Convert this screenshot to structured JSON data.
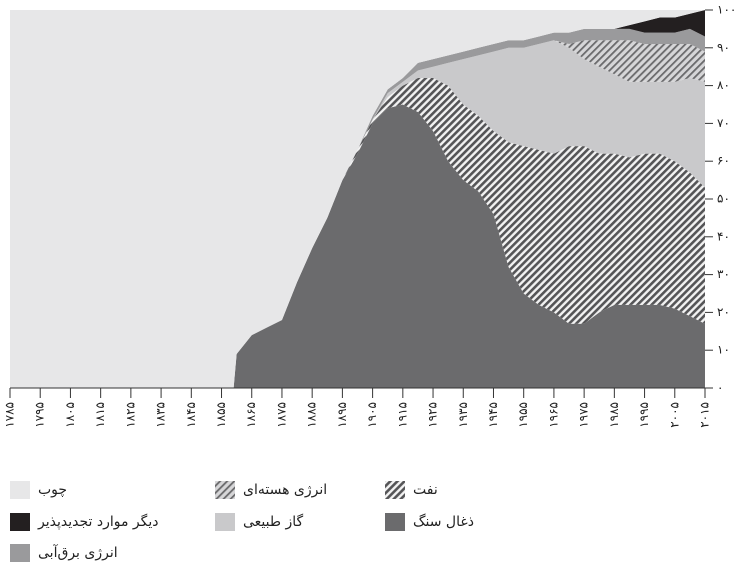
{
  "chart_data": {
    "type": "stacked_area",
    "x": [
      1785,
      1859,
      1860,
      1865,
      1870,
      1875,
      1880,
      1885,
      1890,
      1895,
      1900,
      1905,
      1910,
      1915,
      1920,
      1925,
      1930,
      1935,
      1940,
      1945,
      1950,
      1955,
      1960,
      1965,
      1970,
      1975,
      1980,
      1985,
      1990,
      1995,
      2000,
      2005,
      2010,
      2015
    ],
    "series": [
      {
        "name": "ذغال سنگ",
        "color": "#6b6b6d",
        "values": [
          0,
          0,
          9,
          14,
          16,
          18,
          28,
          37,
          45,
          55,
          62,
          70,
          74,
          75,
          73,
          68,
          60,
          55,
          52,
          46,
          32,
          25,
          22,
          20,
          17,
          17,
          20,
          22,
          22,
          22,
          22,
          21,
          19,
          17
        ]
      },
      {
        "name": "نفت",
        "color": "#6b6b6d",
        "hatch": true,
        "values": [
          0,
          0,
          0,
          0,
          0,
          0,
          0,
          0,
          0,
          0,
          1,
          1,
          3,
          5,
          9,
          14,
          20,
          20,
          20,
          22,
          33,
          39,
          41,
          42,
          47,
          47,
          42,
          40,
          39,
          40,
          40,
          39,
          38,
          36
        ]
      },
      {
        "name": "گاز طبیعی",
        "color": "#c9c9cb",
        "values": [
          0,
          0,
          0,
          0,
          0,
          0,
          0,
          0,
          0,
          0,
          0,
          0,
          1,
          1,
          2,
          3,
          6,
          12,
          16,
          21,
          25,
          26,
          28,
          30,
          26,
          23,
          23,
          21,
          20,
          19,
          19,
          21,
          25,
          28
        ]
      },
      {
        "name": "انرژی هسته‌ای",
        "color": "#9d9d9f",
        "hatch": true,
        "values": [
          0,
          0,
          0,
          0,
          0,
          0,
          0,
          0,
          0,
          0,
          0,
          0,
          0,
          0,
          0,
          0,
          0,
          0,
          0,
          0,
          0,
          0,
          0,
          0,
          1,
          5,
          7,
          9,
          11,
          10,
          10,
          10,
          9,
          8
        ]
      },
      {
        "name": "انرژی برق‌آبی",
        "color": "#9a9a9c",
        "values": [
          0,
          0,
          0,
          0,
          0,
          0,
          0,
          0,
          0,
          0,
          0,
          1,
          1,
          1,
          2,
          2,
          2,
          2,
          2,
          2,
          2,
          2,
          2,
          2,
          3,
          3,
          3,
          3,
          3,
          3,
          3,
          3,
          4,
          4
        ]
      },
      {
        "name": "دیگر موارد تجدیدپذیر",
        "color": "#231f20",
        "values": [
          0,
          0,
          0,
          0,
          0,
          0,
          0,
          0,
          0,
          0,
          0,
          0,
          0,
          0,
          0,
          0,
          0,
          0,
          0,
          0,
          0,
          0,
          0,
          0,
          0,
          0,
          0,
          0,
          1,
          3,
          4,
          4,
          4,
          7
        ]
      },
      {
        "name": "چوب",
        "color": "#e7e7e8",
        "values": [
          100,
          100,
          91,
          86,
          84,
          82,
          72,
          63,
          55,
          45,
          37,
          28,
          21,
          18,
          14,
          13,
          12,
          11,
          10,
          9,
          8,
          8,
          7,
          6,
          6,
          5,
          5,
          5,
          4,
          3,
          2,
          2,
          1,
          0
        ]
      }
    ],
    "xlim": [
      1785,
      2015
    ],
    "xticks": [
      {
        "value": 1785,
        "label": "۱۷۸۵"
      },
      {
        "value": 1795,
        "label": "۱۷۹۵"
      },
      {
        "value": 1805,
        "label": "۱۸۰۵"
      },
      {
        "value": 1815,
        "label": "۱۸۱۵"
      },
      {
        "value": 1825,
        "label": "۱۸۲۵"
      },
      {
        "value": 1835,
        "label": "۱۸۳۵"
      },
      {
        "value": 1845,
        "label": "۱۸۴۵"
      },
      {
        "value": 1855,
        "label": "۱۸۵۵"
      },
      {
        "value": 1865,
        "label": "۱۸۶۵"
      },
      {
        "value": 1875,
        "label": "۱۸۷۵"
      },
      {
        "value": 1885,
        "label": "۱۸۸۵"
      },
      {
        "value": 1895,
        "label": "۱۸۹۵"
      },
      {
        "value": 1905,
        "label": "۱۹۰۵"
      },
      {
        "value": 1915,
        "label": "۱۹۱۵"
      },
      {
        "value": 1925,
        "label": "۱۹۲۵"
      },
      {
        "value": 1935,
        "label": "۱۹۳۵"
      },
      {
        "value": 1945,
        "label": "۱۹۴۵"
      },
      {
        "value": 1955,
        "label": "۱۹۵۵"
      },
      {
        "value": 1965,
        "label": "۱۹۶۵"
      },
      {
        "value": 1975,
        "label": "۱۹۷۵"
      },
      {
        "value": 1985,
        "label": "۱۹۸۵"
      },
      {
        "value": 1995,
        "label": "۱۹۹۵"
      },
      {
        "value": 2005,
        "label": "۲۰۰۵"
      },
      {
        "value": 2015,
        "label": "۲۰۱۵"
      }
    ],
    "ylim": [
      0,
      100
    ],
    "yticks": [
      {
        "value": 0,
        "label": "۰"
      },
      {
        "value": 10,
        "label": "۱۰"
      },
      {
        "value": 20,
        "label": "۲۰"
      },
      {
        "value": 30,
        "label": "۳۰"
      },
      {
        "value": 40,
        "label": "۴۰"
      },
      {
        "value": 50,
        "label": "۵۰"
      },
      {
        "value": 60,
        "label": "۶۰"
      },
      {
        "value": 70,
        "label": "۷۰"
      },
      {
        "value": 80,
        "label": "۸۰"
      },
      {
        "value": 90,
        "label": "۹۰"
      },
      {
        "value": 100,
        "label": "۱۰۰"
      }
    ]
  }
}
